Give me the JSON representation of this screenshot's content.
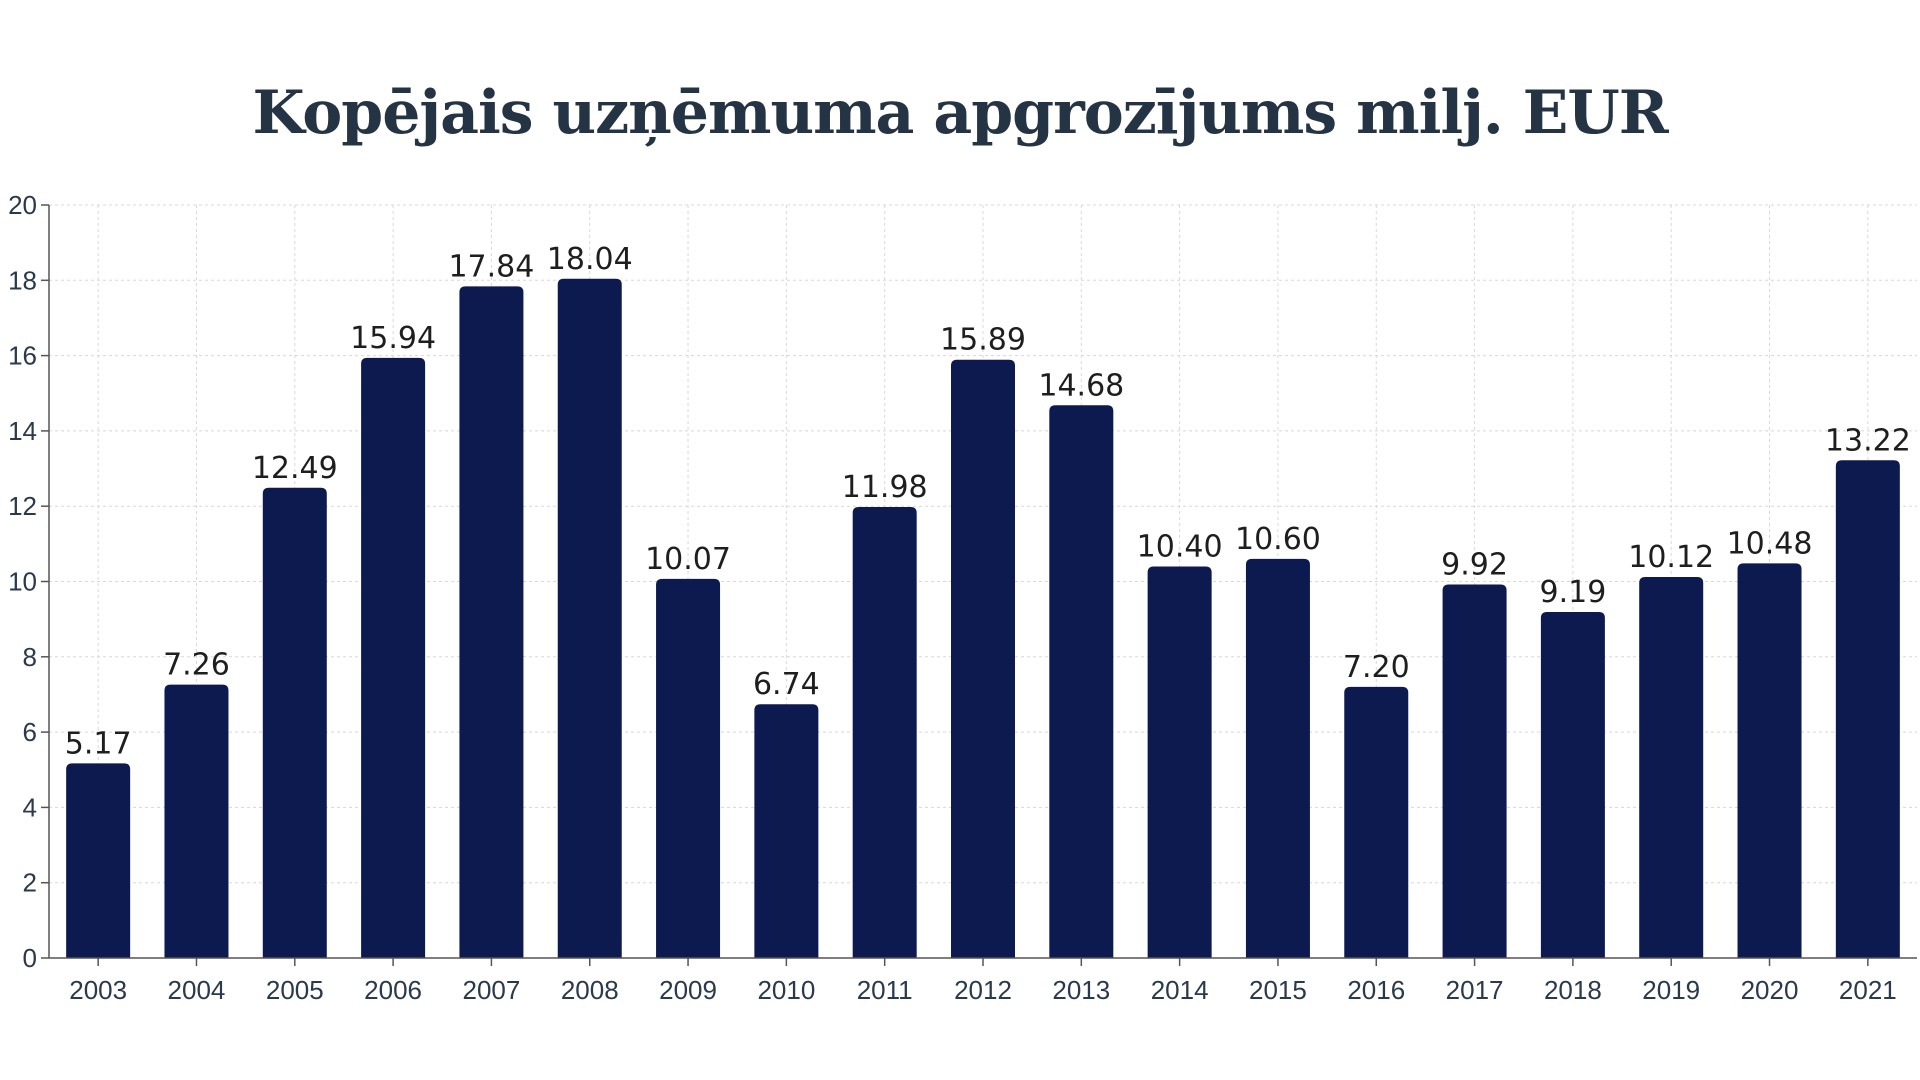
{
  "chart_data": {
    "type": "bar",
    "title": "Kopējais uzņēmuma apgrozījums milj. EUR",
    "categories": [
      "2003",
      "2004",
      "2005",
      "2006",
      "2007",
      "2008",
      "2009",
      "2010",
      "2011",
      "2012",
      "2013",
      "2014",
      "2015",
      "2016",
      "2017",
      "2018",
      "2019",
      "2020",
      "2021"
    ],
    "values": [
      5.17,
      7.26,
      12.49,
      15.94,
      17.84,
      18.04,
      10.07,
      6.74,
      11.98,
      15.89,
      14.68,
      10.4,
      10.6,
      7.2,
      9.92,
      9.19,
      10.12,
      10.48,
      13.22
    ],
    "value_labels": [
      "5.17",
      "7.26",
      "12.49",
      "15.94",
      "17.84",
      "18.04",
      "10.07",
      "6.74",
      "11.98",
      "15.89",
      "14.68",
      "10.40",
      "10.60",
      "7.20",
      "9.92",
      "9.19",
      "10.12",
      "10.48",
      "13.22"
    ],
    "xlabel": "",
    "ylabel": "",
    "ylim": [
      0,
      20
    ],
    "yticks": [
      0,
      2,
      4,
      6,
      8,
      10,
      12,
      14,
      16,
      18,
      20
    ],
    "grid": true,
    "legend": false,
    "bar_color": "#0d1a4f",
    "title_color": "#253444",
    "grid_color": "#d8d8d8"
  }
}
